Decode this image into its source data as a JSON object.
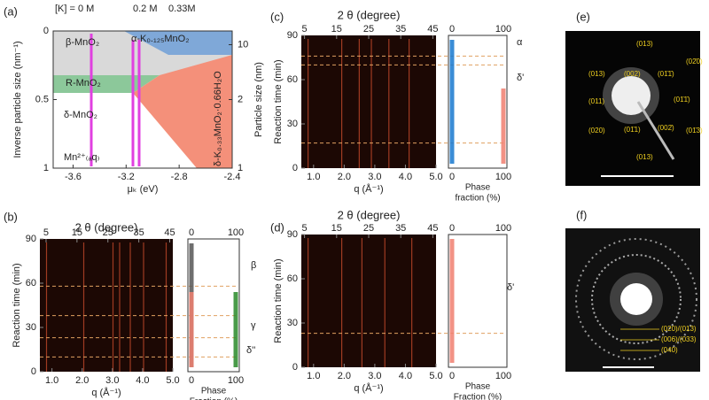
{
  "panel_a": {
    "label": "(a)",
    "concentrations": [
      "[K] = 0 M",
      "0.2 M",
      "0.33M"
    ],
    "x_label": "μₖ (eV)",
    "xticks": [
      -3.6,
      -3.2,
      -2.8,
      -2.4
    ],
    "xlim": [
      -3.75,
      -2.4
    ],
    "y_label": "Inverse particle size (nm⁻¹)",
    "yticks": [
      0,
      0.5,
      1
    ],
    "ylim": [
      0,
      1
    ],
    "y2_label": "Particle size (nm)",
    "y2ticks": [
      10,
      2,
      1
    ],
    "phases": [
      "β-MnO₂",
      "α-K₀.₁₂₅MnO₂",
      "R-MnO₂",
      "δ-MnO₂",
      "δ-K₀.₃₃MnO₂·0.66H₂O",
      "Mn²⁺₍ₐq₎"
    ]
  },
  "panel_b": {
    "label": "(b)",
    "top_label": "2 θ (degree)",
    "top_ticks": [
      5,
      15,
      25,
      35,
      45
    ],
    "top_lim": [
      3,
      46
    ],
    "y_label": "Reaction time (min)",
    "yticks": [
      0,
      30,
      60,
      90
    ],
    "ylim": [
      0,
      90
    ],
    "x_label": "q (Å⁻¹)",
    "xticks": [
      {
        "value": 1,
        "label": "1.0"
      },
      {
        "value": 2,
        "label": "2.0"
      },
      {
        "value": 3,
        "label": "3.0"
      },
      {
        "value": 4,
        "label": "4.0"
      },
      {
        "value": 5,
        "label": "5.0"
      }
    ],
    "xlim": [
      0.6,
      5.0
    ],
    "phase_ticks": [
      0,
      100
    ],
    "phase_label": [
      "Phase",
      "Fraction (%)"
    ],
    "phases": [
      "β",
      "γ",
      "δ''"
    ]
  },
  "panel_c": {
    "label": "(c)",
    "top_label": "2 θ (degree)",
    "top_ticks": [
      5,
      15,
      25,
      35,
      45
    ],
    "top_lim": [
      4,
      46
    ],
    "y_label": "Reaction time (min)",
    "yticks": [
      0,
      30,
      60,
      90
    ],
    "ylim": [
      0,
      90
    ],
    "x_label": "q (Å⁻¹)",
    "xticks": [
      {
        "value": 1,
        "label": "1.0"
      },
      {
        "value": 2,
        "label": "2.0"
      },
      {
        "value": 3,
        "label": "3.0"
      },
      {
        "value": 4,
        "label": "4.0"
      },
      {
        "value": 5,
        "label": "5.0"
      }
    ],
    "xlim": [
      0.6,
      5.0
    ],
    "phase_ticks": [
      0,
      100
    ],
    "phase_label": [
      "Phase",
      "fraction (%)"
    ],
    "phases": [
      "α",
      "δ'"
    ]
  },
  "panel_d": {
    "label": "(d)",
    "top_label": "2 θ (degree)",
    "top_ticks": [
      5,
      15,
      25,
      35,
      45
    ],
    "top_lim": [
      4,
      46
    ],
    "y_label": "Reaction time (min)",
    "yticks": [
      0,
      30,
      60,
      90
    ],
    "ylim": [
      0,
      90
    ],
    "x_label": "q (Å⁻¹)",
    "xticks": [
      {
        "value": 1,
        "label": "1.0"
      },
      {
        "value": 2,
        "label": "2.0"
      },
      {
        "value": 3,
        "label": "3.0"
      },
      {
        "value": 4,
        "label": "4.0"
      },
      {
        "value": 5,
        "label": "5.0"
      }
    ],
    "xlim": [
      0.6,
      5.0
    ],
    "phase_ticks": [
      0,
      100
    ],
    "phase_label": [
      "Phase",
      "Fraction (%)"
    ],
    "phases": [
      "δ'"
    ]
  },
  "panel_e": {
    "label": "(e)",
    "spots": [
      "(013)",
      "(02̄0)",
      "(013)",
      "(002)",
      "(01̄1̄)",
      "(011)",
      "(01̄1̄)",
      "(020)",
      "(01̄1)",
      "(002̄)",
      "(01̄3)",
      "(013)"
    ]
  },
  "panel_f": {
    "label": "(f)",
    "rings": [
      "(020)/(013)",
      "(006)/(033)",
      "(040)"
    ]
  }
}
